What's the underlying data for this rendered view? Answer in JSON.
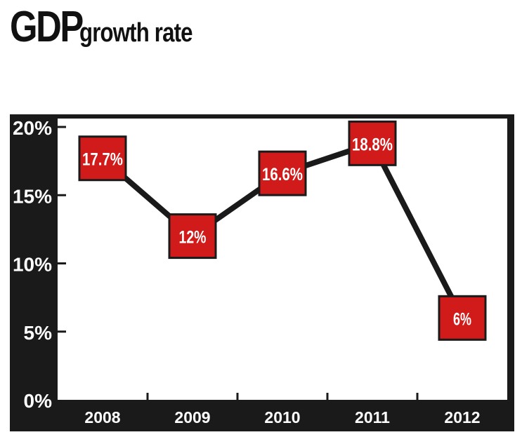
{
  "title": {
    "main": "GDP",
    "sub": "growth rate"
  },
  "colors": {
    "frame": "#1a1a1a",
    "line": "#1a1a1a",
    "marker": "#d11a1a",
    "text": "#ffffff",
    "background": "#ffffff"
  },
  "chart_data": {
    "type": "line",
    "title": "GDP growth rate",
    "categories": [
      "2008",
      "2009",
      "2010",
      "2011",
      "2012"
    ],
    "series": [
      {
        "values": [
          17.7,
          12,
          16.6,
          18.8,
          6
        ]
      }
    ],
    "data_labels": [
      "17.7%",
      "12%",
      "16.6%",
      "18.8%",
      "6%"
    ],
    "ylim": [
      0,
      20
    ],
    "y_ticks": [
      0,
      5,
      10,
      15,
      20
    ],
    "y_tick_labels": [
      "0%",
      "5%",
      "10%",
      "15%",
      "20%"
    ],
    "grid": false,
    "legend": "none"
  }
}
